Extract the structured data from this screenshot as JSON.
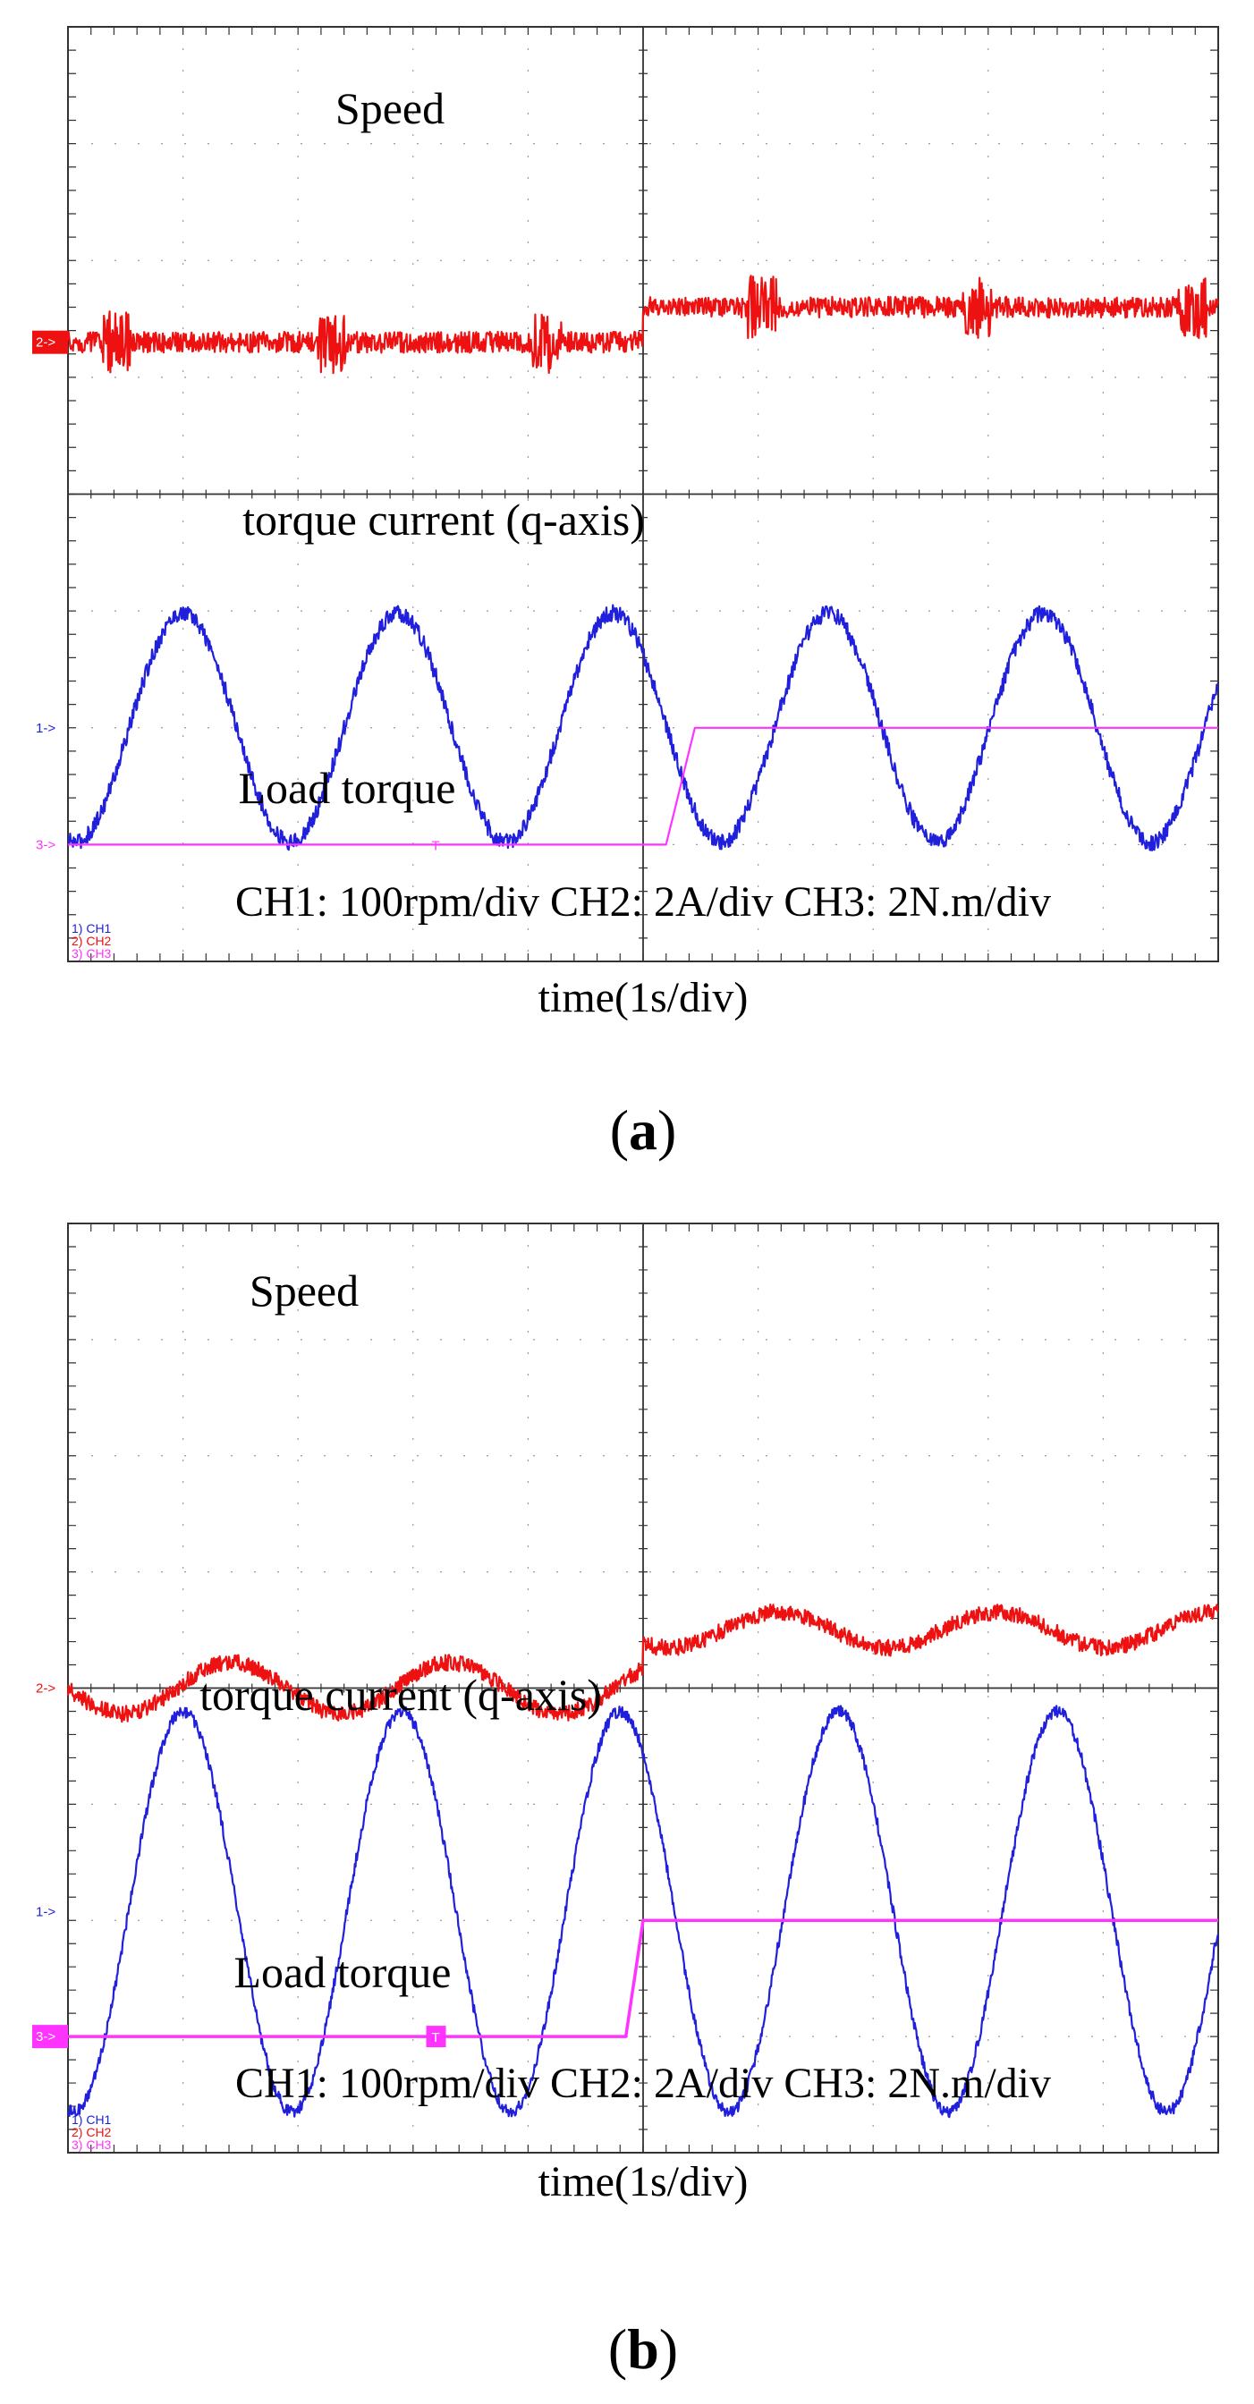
{
  "chart_data": [
    {
      "type": "line",
      "panel_label": "a",
      "xlabel": "time(1s/div)",
      "scale_text": "CH1: 100rpm/div CH2: 2A/div CH3: 2N.m/div",
      "grid": true,
      "x_divisions": 10,
      "y_divisions": 8,
      "trace_labels": {
        "speed": "Speed",
        "current": "torque current (q-axis)",
        "load": "Load torque"
      },
      "markers": {
        "ch1": "1->",
        "ch2": "2->",
        "ch3": "3->",
        "trigger": "T"
      },
      "legend": [
        "1) CH1",
        "2) CH2",
        "3) CH3"
      ],
      "colors": {
        "ch1": "#1f1fdc",
        "ch2": "#ee1111",
        "ch3": "#ff33ff",
        "grid": "#333333"
      },
      "x_range": [
        0,
        10
      ],
      "y_range": [
        0,
        8
      ],
      "series": [
        {
          "channel": "CH1",
          "kind": "sine",
          "min": 1.02,
          "max": 2.98,
          "period": 1.87,
          "phase_peak_x": 1.0,
          "noise": 0.07
        },
        {
          "channel": "CH2",
          "kind": "noisy",
          "before": 5.3,
          "after": 5.6,
          "step_x": 5.0,
          "noise": 0.09
        },
        {
          "channel": "CH3",
          "kind": "ramp",
          "before": 1.0,
          "after": 2.0,
          "ramp_start_x": 5.2,
          "ramp_end_x": 5.45
        }
      ]
    },
    {
      "type": "line",
      "panel_label": "b",
      "xlabel": "time(1s/div)",
      "scale_text": "CH1: 100rpm/div CH2: 2A/div CH3: 2N.m/div",
      "grid": true,
      "x_divisions": 10,
      "y_divisions": 8,
      "trace_labels": {
        "speed": "Speed",
        "current": "torque current (q-axis)",
        "load": "Load torque"
      },
      "markers": {
        "ch1": "1->",
        "ch2": "2->",
        "ch3": "3->",
        "trigger": "T"
      },
      "legend": [
        "1) CH1",
        "2) CH2",
        "3) CH3"
      ],
      "colors": {
        "ch1": "#1f1fdc",
        "ch2": "#ee1111",
        "ch3": "#ff33ff",
        "grid": "#333333"
      },
      "x_range": [
        0,
        10
      ],
      "y_range": [
        0,
        8
      ],
      "series": [
        {
          "channel": "CH1",
          "kind": "sine",
          "min": 0.35,
          "max": 3.8,
          "period": 1.9,
          "phase_peak_x": 1.0,
          "noise": 0.05
        },
        {
          "channel": "CH2",
          "kind": "wavy",
          "before": 4.0,
          "after": 4.5,
          "step_x": 5.0,
          "wave_amp": 0.22,
          "noise": 0.07
        },
        {
          "channel": "CH3",
          "kind": "ramp",
          "before": 1.0,
          "after": 2.0,
          "ramp_start_x": 4.85,
          "ramp_end_x": 5.0
        }
      ]
    }
  ]
}
